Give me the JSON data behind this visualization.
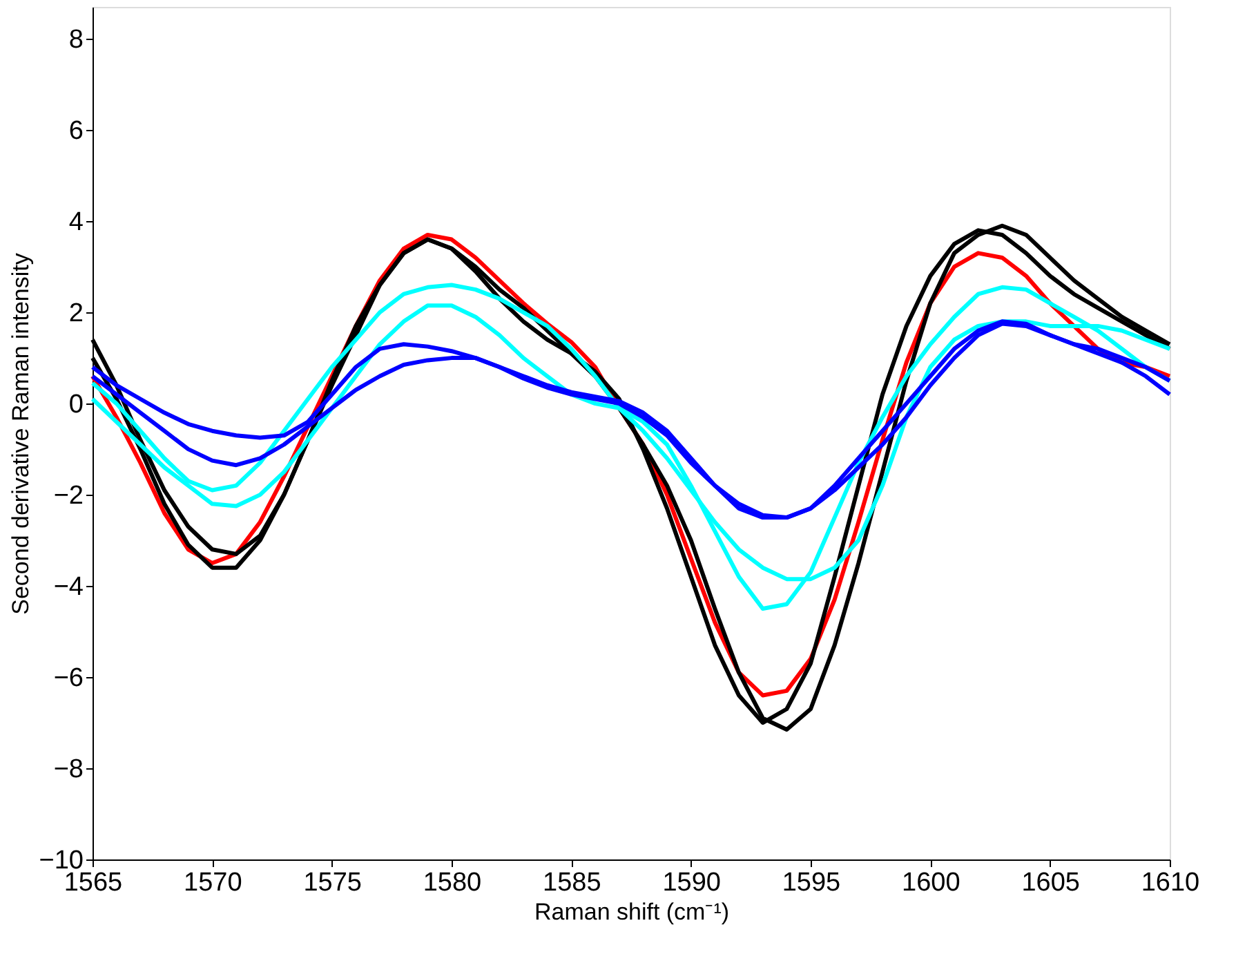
{
  "chart_data": {
    "type": "line",
    "xlabel": "Raman shift (cm⁻¹)",
    "ylabel": "Second derivative Raman intensity",
    "x": [
      1565,
      1566,
      1567,
      1568,
      1569,
      1570,
      1571,
      1572,
      1573,
      1574,
      1575,
      1576,
      1577,
      1578,
      1579,
      1580,
      1581,
      1582,
      1583,
      1584,
      1585,
      1586,
      1587,
      1588,
      1589,
      1590,
      1591,
      1592,
      1593,
      1594,
      1595,
      1596,
      1597,
      1598,
      1599,
      1600,
      1601,
      1602,
      1603,
      1604,
      1605,
      1606,
      1607,
      1608,
      1609,
      1610
    ],
    "series": [
      {
        "color": "#ff0000",
        "values": [
          0.6,
          -0.3,
          -1.3,
          -2.4,
          -3.2,
          -3.5,
          -3.3,
          -2.6,
          -1.6,
          -0.5,
          0.6,
          1.7,
          2.7,
          3.4,
          3.7,
          3.6,
          3.2,
          2.7,
          2.2,
          1.75,
          1.35,
          0.8,
          -0.1,
          -0.9,
          -2.0,
          -3.4,
          -4.8,
          -5.9,
          -6.4,
          -6.3,
          -5.6,
          -4.3,
          -2.6,
          -0.8,
          0.9,
          2.2,
          3.0,
          3.3,
          3.2,
          2.8,
          2.2,
          1.7,
          1.2,
          0.9,
          0.8,
          0.6
        ]
      },
      {
        "color": "#000000",
        "values": [
          1.4,
          0.4,
          -0.8,
          -1.9,
          -2.7,
          -3.2,
          -3.3,
          -2.9,
          -2.0,
          -0.8,
          0.5,
          1.7,
          2.6,
          3.3,
          3.6,
          3.4,
          2.9,
          2.3,
          1.8,
          1.4,
          1.1,
          0.7,
          0.1,
          -1.0,
          -2.3,
          -3.8,
          -5.3,
          -6.4,
          -7.0,
          -6.7,
          -5.7,
          -3.8,
          -1.8,
          0.2,
          1.7,
          2.8,
          3.5,
          3.8,
          3.7,
          3.3,
          2.8,
          2.4,
          2.1,
          1.8,
          1.5,
          1.2
        ]
      },
      {
        "color": "#000000",
        "values": [
          1.0,
          0.1,
          -1.0,
          -2.2,
          -3.1,
          -3.6,
          -3.6,
          -3.0,
          -2.0,
          -0.8,
          0.4,
          1.5,
          2.6,
          3.3,
          3.6,
          3.4,
          3.0,
          2.5,
          2.1,
          1.6,
          1.1,
          0.6,
          -0.1,
          -0.9,
          -1.8,
          -3.0,
          -4.5,
          -5.9,
          -6.9,
          -7.15,
          -6.7,
          -5.3,
          -3.5,
          -1.5,
          0.5,
          2.2,
          3.3,
          3.7,
          3.9,
          3.7,
          3.2,
          2.7,
          2.3,
          1.9,
          1.6,
          1.3
        ]
      },
      {
        "color": "#00ffff",
        "values": [
          0.45,
          0.0,
          -0.6,
          -1.2,
          -1.7,
          -1.9,
          -1.8,
          -1.3,
          -0.6,
          0.1,
          0.8,
          1.4,
          2.0,
          2.4,
          2.55,
          2.6,
          2.5,
          2.3,
          2.0,
          1.7,
          1.2,
          0.6,
          -0.1,
          -0.6,
          -1.2,
          -1.9,
          -2.6,
          -3.2,
          -3.6,
          -3.85,
          -3.85,
          -3.6,
          -3.0,
          -1.8,
          -0.3,
          0.8,
          1.4,
          1.7,
          1.8,
          1.8,
          1.7,
          1.7,
          1.7,
          1.6,
          1.4,
          1.2
        ]
      },
      {
        "color": "#00ffff",
        "values": [
          0.1,
          -0.4,
          -0.9,
          -1.4,
          -1.8,
          -2.2,
          -2.25,
          -2.0,
          -1.5,
          -0.8,
          -0.1,
          0.6,
          1.3,
          1.8,
          2.15,
          2.15,
          1.9,
          1.5,
          1.0,
          0.6,
          0.2,
          0.0,
          -0.1,
          -0.4,
          -0.9,
          -1.8,
          -2.8,
          -3.8,
          -4.5,
          -4.4,
          -3.7,
          -2.5,
          -1.3,
          -0.3,
          0.6,
          1.3,
          1.9,
          2.4,
          2.55,
          2.5,
          2.2,
          1.9,
          1.6,
          1.2,
          0.8,
          0.5
        ]
      },
      {
        "color": "#0000ff",
        "values": [
          0.8,
          0.4,
          0.1,
          -0.2,
          -0.45,
          -0.6,
          -0.7,
          -0.75,
          -0.7,
          -0.4,
          0.2,
          0.8,
          1.2,
          1.3,
          1.25,
          1.15,
          1.0,
          0.8,
          0.6,
          0.4,
          0.25,
          0.15,
          0.05,
          -0.2,
          -0.6,
          -1.2,
          -1.8,
          -2.3,
          -2.5,
          -2.5,
          -2.3,
          -1.8,
          -1.2,
          -0.6,
          0.0,
          0.6,
          1.2,
          1.6,
          1.8,
          1.75,
          1.5,
          1.3,
          1.1,
          0.9,
          0.6,
          0.2
        ]
      },
      {
        "color": "#0000ff",
        "values": [
          0.6,
          0.2,
          -0.2,
          -0.6,
          -1.0,
          -1.25,
          -1.35,
          -1.2,
          -0.9,
          -0.5,
          -0.1,
          0.3,
          0.6,
          0.85,
          0.95,
          1.0,
          1.0,
          0.8,
          0.55,
          0.35,
          0.2,
          0.1,
          0.0,
          -0.3,
          -0.7,
          -1.3,
          -1.8,
          -2.2,
          -2.45,
          -2.5,
          -2.3,
          -1.9,
          -1.4,
          -0.9,
          -0.3,
          0.4,
          1.0,
          1.5,
          1.75,
          1.7,
          1.5,
          1.3,
          1.2,
          1.0,
          0.8,
          0.5
        ]
      }
    ],
    "xlim": [
      1565,
      1610
    ],
    "xticks": [
      1565,
      1570,
      1575,
      1580,
      1585,
      1590,
      1595,
      1600,
      1605,
      1610
    ],
    "ylim": [
      -10,
      8.7
    ],
    "yticks": [
      -10,
      -8,
      -6,
      -4,
      -2,
      0,
      2,
      4,
      6,
      8
    ],
    "grid": false,
    "legend": false
  }
}
